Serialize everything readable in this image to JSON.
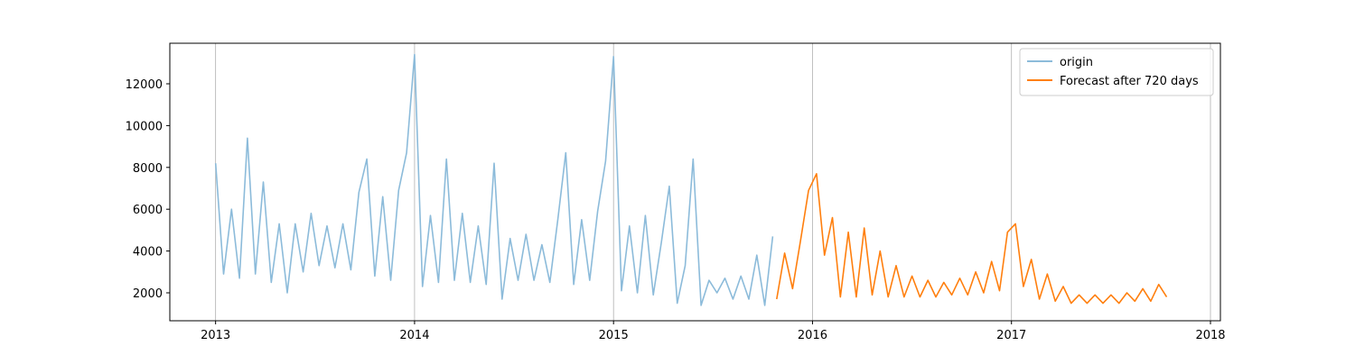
{
  "chart_data": {
    "type": "line",
    "xlim": [
      2012.77,
      2018.05
    ],
    "xticks": [
      2013,
      2014,
      2015,
      2016,
      2017,
      2018
    ],
    "ylim": [
      664,
      13940
    ],
    "yticks": [
      2000,
      4000,
      6000,
      8000,
      10000,
      12000
    ],
    "grid": "x",
    "legend": "upper right",
    "series": [
      {
        "name": "origin",
        "color": "#8cbbda",
        "x": [
          2013.0,
          2013.04,
          2013.08,
          2013.12,
          2013.16,
          2013.2,
          2013.24,
          2013.28,
          2013.32,
          2013.36,
          2013.4,
          2013.44,
          2013.48,
          2013.52,
          2013.56,
          2013.6,
          2013.64,
          2013.68,
          2013.72,
          2013.76,
          2013.8,
          2013.84,
          2013.88,
          2013.92,
          2013.96,
          2014.0,
          2014.04,
          2014.08,
          2014.12,
          2014.16,
          2014.2,
          2014.24,
          2014.28,
          2014.32,
          2014.36,
          2014.4,
          2014.44,
          2014.48,
          2014.52,
          2014.56,
          2014.6,
          2014.64,
          2014.68,
          2014.72,
          2014.76,
          2014.8,
          2014.84,
          2014.88,
          2014.92,
          2014.96,
          2015.0,
          2015.04,
          2015.08,
          2015.12,
          2015.16,
          2015.2,
          2015.24,
          2015.28,
          2015.32,
          2015.36,
          2015.4,
          2015.44,
          2015.48,
          2015.52,
          2015.56,
          2015.6,
          2015.64,
          2015.68,
          2015.72,
          2015.76,
          2015.8
        ],
        "values": [
          8200,
          2900,
          6000,
          2700,
          9400,
          2900,
          7300,
          2500,
          5300,
          2000,
          5300,
          3000,
          5800,
          3300,
          5200,
          3200,
          5300,
          3100,
          6800,
          8400,
          2800,
          6600,
          2600,
          6900,
          8700,
          13400,
          2300,
          5700,
          2500,
          8400,
          2600,
          5800,
          2500,
          5200,
          2400,
          8200,
          1700,
          4600,
          2600,
          4800,
          2600,
          4300,
          2500,
          5500,
          8700,
          2400,
          5500,
          2600,
          5900,
          8300,
          13300,
          2100,
          5200,
          2000,
          5700,
          1900,
          4400,
          7100,
          1500,
          3300,
          8400,
          1400,
          2600,
          2000,
          2700,
          1700,
          2800,
          1700,
          3800,
          1400,
          4700
        ]
      },
      {
        "name": "Forecast after 720 days",
        "color": "#ff7f0e",
        "x": [
          2015.82,
          2015.86,
          2015.9,
          2015.94,
          2015.98,
          2016.02,
          2016.06,
          2016.1,
          2016.14,
          2016.18,
          2016.22,
          2016.26,
          2016.3,
          2016.34,
          2016.38,
          2016.42,
          2016.46,
          2016.5,
          2016.54,
          2016.58,
          2016.62,
          2016.66,
          2016.7,
          2016.74,
          2016.78,
          2016.82,
          2016.86,
          2016.9,
          2016.94,
          2016.98,
          2017.02,
          2017.06,
          2017.1,
          2017.14,
          2017.18,
          2017.22,
          2017.26,
          2017.3,
          2017.34,
          2017.38,
          2017.42,
          2017.46,
          2017.5,
          2017.54,
          2017.58,
          2017.62,
          2017.66,
          2017.7,
          2017.74,
          2017.78
        ],
        "values": [
          1700,
          3900,
          2200,
          4500,
          6900,
          7700,
          3800,
          5600,
          1800,
          4900,
          1800,
          5100,
          1900,
          4000,
          1800,
          3300,
          1800,
          2800,
          1800,
          2600,
          1800,
          2500,
          1900,
          2700,
          1900,
          3000,
          2000,
          3500,
          2100,
          4900,
          5300,
          2300,
          3600,
          1700,
          2900,
          1600,
          2300,
          1500,
          1900,
          1500,
          1900,
          1500,
          1900,
          1500,
          2000,
          1600,
          2200,
          1600,
          2400,
          1800
        ]
      }
    ]
  }
}
